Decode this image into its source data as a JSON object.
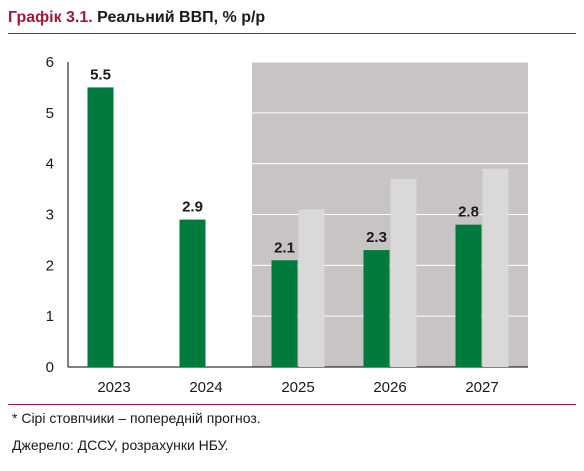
{
  "header": {
    "title_prefix": "Графік 3.1.",
    "title_main": "Реальний ВВП, % р/р"
  },
  "footer": {
    "note": "* Сірі стовпчики – попередній прогноз.",
    "source": "Джерело: ДССУ, розрахунки НБУ."
  },
  "chart_data": {
    "type": "bar",
    "title": "Реальний ВВП, % р/р",
    "categories": [
      "2023",
      "2024",
      "2025",
      "2026",
      "2027"
    ],
    "series": [
      {
        "values": [
          5.5,
          2.9,
          2.1,
          2.3,
          2.8
        ],
        "color": "#007a3d",
        "labels": [
          "5.5",
          "2.9",
          "2.1",
          "2.3",
          "2.8"
        ]
      },
      {
        "values": [
          null,
          null,
          3.1,
          3.7,
          3.9
        ],
        "color": "#d9d9d9"
      }
    ],
    "y_ticks": [
      "0",
      "1",
      "2",
      "3",
      "4",
      "5",
      "6"
    ],
    "ylim": [
      0,
      6
    ],
    "forecast_shading_from": "2025",
    "shading_color": "#c9c4c4",
    "grid": true
  }
}
